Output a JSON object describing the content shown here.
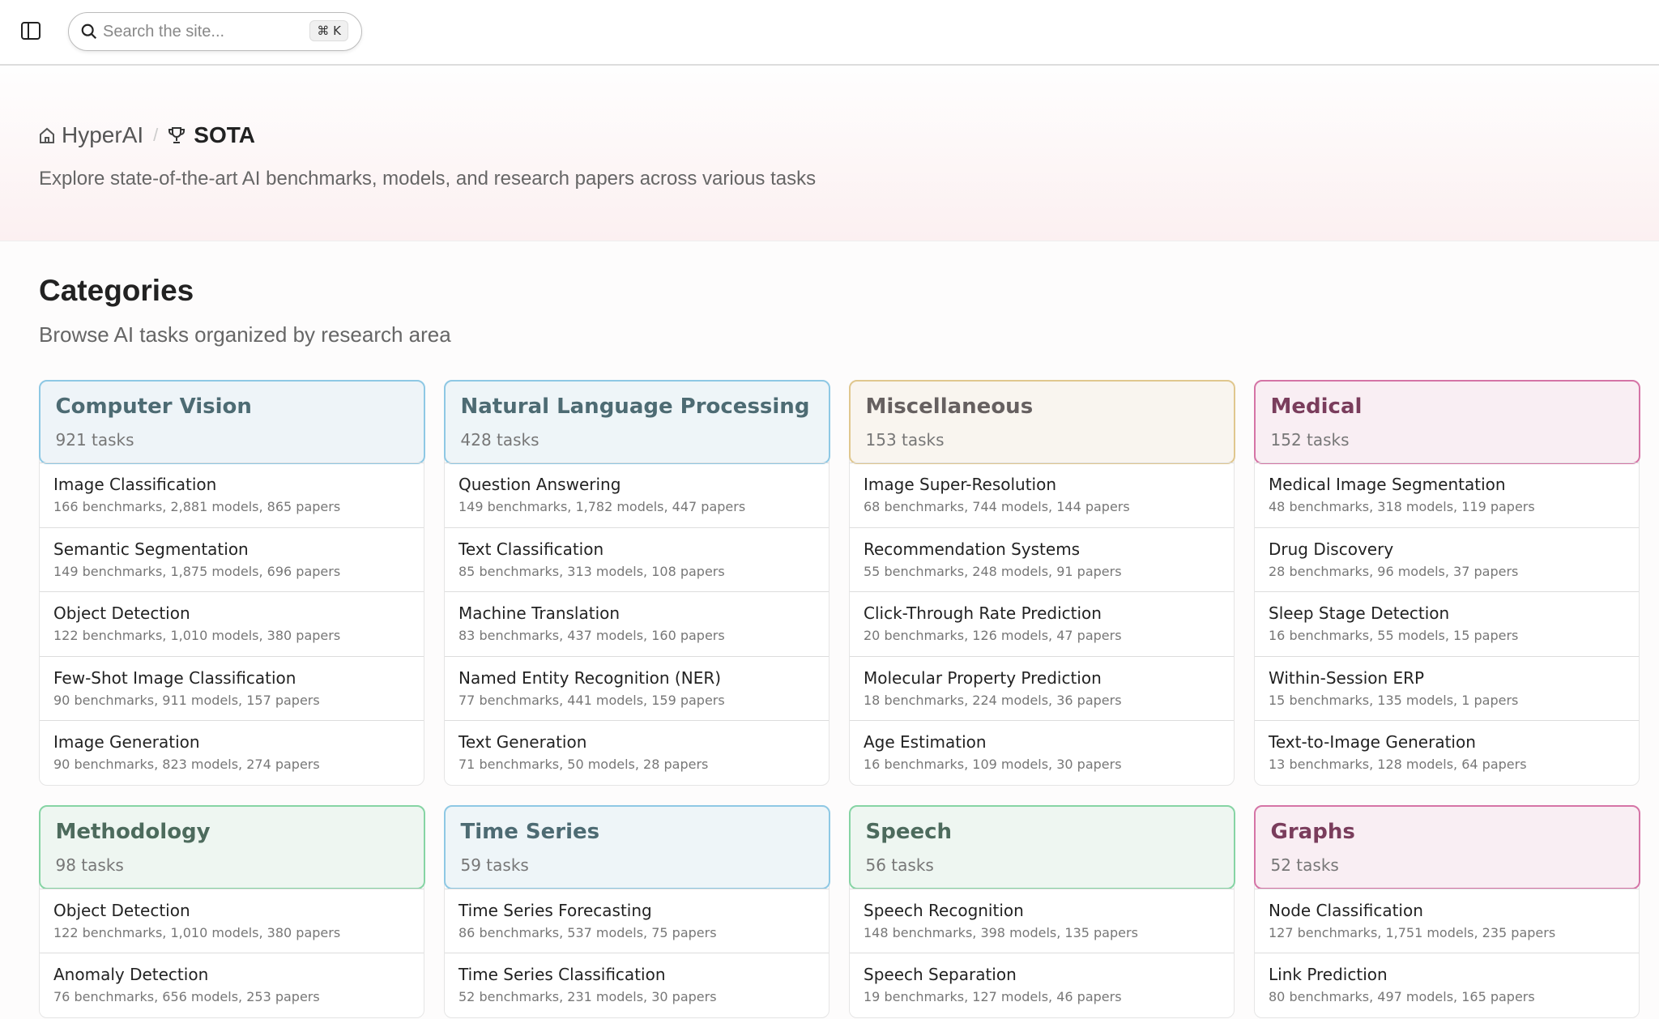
{
  "topbar": {
    "search_placeholder": "Search the site...",
    "shortcut": "⌘ K"
  },
  "breadcrumb": {
    "home": "HyperAI",
    "separator": "/",
    "current": "SOTA"
  },
  "hero": {
    "description": "Explore state-of-the-art AI benchmarks, models, and research papers across various tasks"
  },
  "categories": {
    "title": "Categories",
    "subtitle": "Browse AI tasks organized by research area",
    "cards": [
      {
        "title": "Computer Vision",
        "count": "921 tasks",
        "border": "#8ec8e4",
        "bg": "#eef4f8",
        "color": "#4d6b73",
        "items": [
          {
            "name": "Image Classification",
            "meta": "166 benchmarks, 2,881 models, 865 papers"
          },
          {
            "name": "Semantic Segmentation",
            "meta": "149 benchmarks, 1,875 models, 696 papers"
          },
          {
            "name": "Object Detection",
            "meta": "122 benchmarks, 1,010 models, 380 papers"
          },
          {
            "name": "Few-Shot Image Classification",
            "meta": "90 benchmarks, 911 models, 157 papers"
          },
          {
            "name": "Image Generation",
            "meta": "90 benchmarks, 823 models, 274 papers"
          }
        ]
      },
      {
        "title": "Natural Language Processing",
        "count": "428 tasks",
        "border": "#8ec8e4",
        "bg": "#eef5f8",
        "color": "#4d6b73",
        "items": [
          {
            "name": "Question Answering",
            "meta": "149 benchmarks, 1,782 models, 447 papers"
          },
          {
            "name": "Text Classification",
            "meta": "85 benchmarks, 313 models, 108 papers"
          },
          {
            "name": "Machine Translation",
            "meta": "83 benchmarks, 437 models, 160 papers"
          },
          {
            "name": "Named Entity Recognition (NER)",
            "meta": "77 benchmarks, 441 models, 159 papers"
          },
          {
            "name": "Text Generation",
            "meta": "71 benchmarks, 50 models, 28 papers"
          }
        ]
      },
      {
        "title": "Miscellaneous",
        "count": "153 tasks",
        "border": "#e0c78e",
        "bg": "#f9f5ef",
        "color": "#666060",
        "items": [
          {
            "name": "Image Super-Resolution",
            "meta": "68 benchmarks, 744 models, 144 papers"
          },
          {
            "name": "Recommendation Systems",
            "meta": "55 benchmarks, 248 models, 91 papers"
          },
          {
            "name": "Click-Through Rate Prediction",
            "meta": "20 benchmarks, 126 models, 47 papers"
          },
          {
            "name": "Molecular Property Prediction",
            "meta": "18 benchmarks, 224 models, 36 papers"
          },
          {
            "name": "Age Estimation",
            "meta": "16 benchmarks, 109 models, 30 papers"
          }
        ]
      },
      {
        "title": "Medical",
        "count": "152 tasks",
        "border": "#d574a6",
        "bg": "#f9eef3",
        "color": "#7a3d5c",
        "items": [
          {
            "name": "Medical Image Segmentation",
            "meta": "48 benchmarks, 318 models, 119 papers"
          },
          {
            "name": "Drug Discovery",
            "meta": "28 benchmarks, 96 models, 37 papers"
          },
          {
            "name": "Sleep Stage Detection",
            "meta": "16 benchmarks, 55 models, 15 papers"
          },
          {
            "name": "Within-Session ERP",
            "meta": "15 benchmarks, 135 models, 1 papers"
          },
          {
            "name": "Text-to-Image Generation",
            "meta": "13 benchmarks, 128 models, 64 papers"
          }
        ]
      },
      {
        "title": "Methodology",
        "count": "98 tasks",
        "border": "#86d4a4",
        "bg": "#eef6f1",
        "color": "#4d6b5d",
        "items": [
          {
            "name": "Object Detection",
            "meta": "122 benchmarks, 1,010 models, 380 papers"
          },
          {
            "name": "Anomaly Detection",
            "meta": "76 benchmarks, 656 models, 253 papers"
          }
        ]
      },
      {
        "title": "Time Series",
        "count": "59 tasks",
        "border": "#8ec8e4",
        "bg": "#eef5f8",
        "color": "#4d6b73",
        "items": [
          {
            "name": "Time Series Forecasting",
            "meta": "86 benchmarks, 537 models, 75 papers"
          },
          {
            "name": "Time Series Classification",
            "meta": "52 benchmarks, 231 models, 30 papers"
          }
        ]
      },
      {
        "title": "Speech",
        "count": "56 tasks",
        "border": "#86d4a4",
        "bg": "#eef6f1",
        "color": "#4d6b5d",
        "items": [
          {
            "name": "Speech Recognition",
            "meta": "148 benchmarks, 398 models, 135 papers"
          },
          {
            "name": "Speech Separation",
            "meta": "19 benchmarks, 127 models, 46 papers"
          }
        ]
      },
      {
        "title": "Graphs",
        "count": "52 tasks",
        "border": "#d574a6",
        "bg": "#f9eef3",
        "color": "#7a3d5c",
        "items": [
          {
            "name": "Node Classification",
            "meta": "127 benchmarks, 1,751 models, 235 papers"
          },
          {
            "name": "Link Prediction",
            "meta": "80 benchmarks, 497 models, 165 papers"
          }
        ]
      }
    ]
  }
}
